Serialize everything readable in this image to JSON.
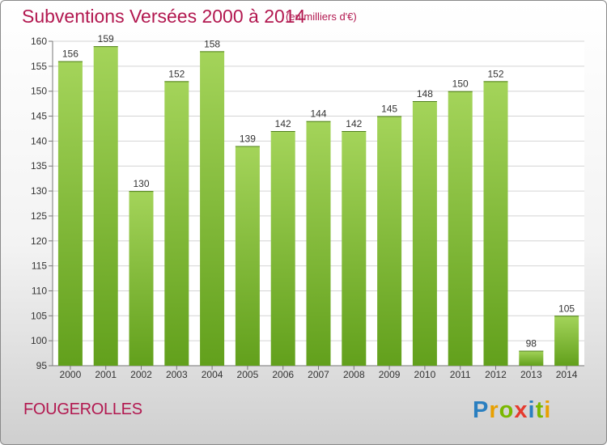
{
  "header": {
    "title": "Subventions Versées 2000 à 2014",
    "unit": "(en milliers d'€)"
  },
  "footer": {
    "place": "FOUGEROLLES",
    "logo_text": "Proxiti"
  },
  "colors": {
    "bar_top": "#a4d45a",
    "bar_bottom": "#62a01c",
    "title": "#b2174f",
    "grid": "#d4d4d4",
    "axis_text": "#333333"
  },
  "chart_data": {
    "type": "bar",
    "title": "Subventions Versées 2000 à 2014",
    "subtitle": "(en milliers d'€)",
    "categories": [
      "2000",
      "2001",
      "2002",
      "2003",
      "2004",
      "2005",
      "2006",
      "2007",
      "2008",
      "2009",
      "2010",
      "2011",
      "2012",
      "2013",
      "2014"
    ],
    "values": [
      156,
      159,
      130,
      152,
      158,
      139,
      142,
      144,
      142,
      145,
      148,
      150,
      152,
      98,
      105
    ],
    "ylim": [
      95,
      160
    ],
    "yticks": [
      95,
      100,
      105,
      110,
      115,
      120,
      125,
      130,
      135,
      140,
      145,
      150,
      155,
      160
    ],
    "grid": true,
    "data_labels": true
  }
}
